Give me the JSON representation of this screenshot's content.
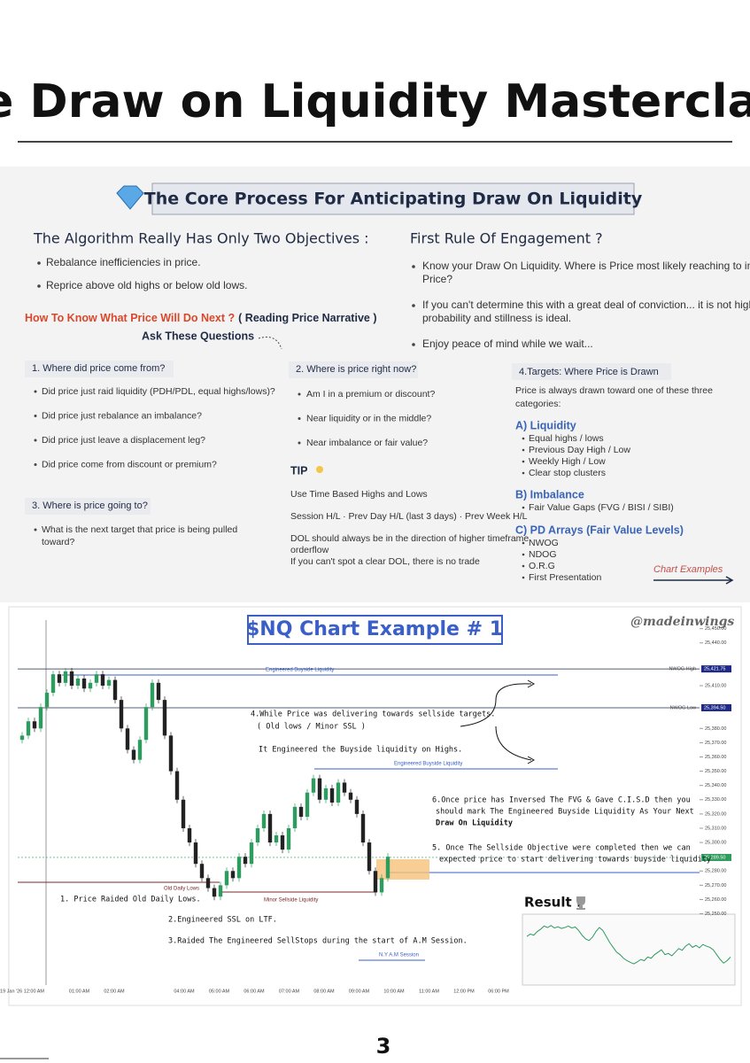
{
  "header": {
    "title": "The Draw on Liquidity Masterclass."
  },
  "section": {
    "heading": "The Core Process For Anticipating Draw On Liquidity"
  },
  "objectives": {
    "title": "The Algorithm Really Has Only Two Objectives :",
    "items": [
      "Rebalance inefficiencies in price.",
      "Reprice above old highs or below old lows."
    ]
  },
  "first_rule": {
    "title": "First Rule Of Engagement ?",
    "items": [
      [
        "Know your Draw On Liquidity. Where is Price most likely reaching to in",
        "Price?"
      ],
      [
        "If you can't determine this with a great deal of conviction... it is not high",
        "probability and stillness is ideal."
      ],
      [
        "Enjoy peace of mind while we wait..."
      ]
    ]
  },
  "narrative": {
    "question": "How To Know What Price Will Do Next ?",
    "subtitle": "( Reading Price Narrative )",
    "ask": "Ask These Questions"
  },
  "q1": {
    "title": "1. Where did price come from?",
    "items": [
      "Did price just raid liquidity (PDH/PDL, equal highs/lows)?",
      "Did price just rebalance an imbalance?",
      "Did price just leave a displacement leg?",
      "Did price come from discount or premium?"
    ]
  },
  "q2": {
    "title": "2. Where is price right now?",
    "items": [
      "Am I in a premium or discount?",
      "Near liquidity or in the middle?",
      "Near imbalance or fair value?"
    ]
  },
  "tip": {
    "title": "TIP",
    "items": [
      [
        "Use Time Based Highs and Lows"
      ],
      [
        "Session H/L · Prev Day H/L (last 3 days) · Prev Week H/L"
      ],
      [
        "DOL should always be in the direction of higher timeframe",
        "orderflow"
      ],
      [
        "If you can't spot a clear DOL, there is no trade"
      ]
    ]
  },
  "q3": {
    "title": "3. Where is price going to?",
    "items": [
      [
        "What is the next target that price is being pulled",
        "toward?"
      ]
    ]
  },
  "targets": {
    "title": "4.Targets: Where Price is Drawn",
    "intro": [
      "Price is always drawn toward one of these three",
      "categories:"
    ],
    "groups": [
      {
        "title": "A) Liquidity",
        "items": [
          "Equal highs / lows",
          "Previous Day High / Low",
          "Weekly High / Low",
          "Clear stop clusters"
        ]
      },
      {
        "title": "B) Imbalance",
        "items": [
          "Fair Value Gaps (FVG / BISI / SIBI)"
        ]
      },
      {
        "title": "C) PD Arrays (Fair Value Levels)",
        "items": [
          "NWOG",
          "NDOG",
          "O.R.G",
          "First Presentation"
        ]
      }
    ],
    "link": "Chart Examples"
  },
  "chart": {
    "title": "$NQ Chart Example # 1",
    "handle": "@madeinwings",
    "ylim": [
      25200,
      25456
    ],
    "yticks": [
      {
        "value": 25250,
        "label": "25,250.00"
      },
      {
        "value": 25260,
        "label": "25,260.00"
      },
      {
        "value": 25270,
        "label": "25,270.00"
      },
      {
        "value": 25280,
        "label": "25,280.00"
      },
      {
        "value": 25300,
        "label": "25,300.00"
      },
      {
        "value": 25310,
        "label": "25,310.00"
      },
      {
        "value": 25320,
        "label": "25,320.00"
      },
      {
        "value": 25330,
        "label": "25,330.00"
      },
      {
        "value": 25340,
        "label": "25,340.00"
      },
      {
        "value": 25350,
        "label": "25,350.00"
      },
      {
        "value": 25360,
        "label": "25,360.00"
      },
      {
        "value": 25370,
        "label": "25,370.00"
      },
      {
        "value": 25380,
        "label": "25,380.00"
      },
      {
        "value": 25410,
        "label": "25,410.00"
      },
      {
        "value": 25440,
        "label": "25,440.00"
      },
      {
        "value": 25450,
        "label": "25,450.00"
      }
    ],
    "levels": [
      {
        "name": "NWOG High",
        "value": 25421.75,
        "label": "25,421.75"
      },
      {
        "name": "NWOG Low",
        "value": 25394.5,
        "label": "25,394.50"
      }
    ],
    "last": {
      "value": 25289.5,
      "label": "25,289.50"
    },
    "times": [
      "Jan 19 Jan '26 12:00 AM",
      "01:00 AM",
      "02:00 AM",
      null,
      "04:00 AM",
      "05:00 AM",
      "06:00 AM",
      "07:00 AM",
      "08:00 AM",
      "09:00 AM",
      "10:00 AM",
      "11:00 AM",
      "12:00 PM",
      "06:00 PM"
    ],
    "closes": [
      25375,
      25385,
      25380,
      25395,
      25405,
      25418,
      25412,
      25420,
      25410,
      25415,
      25408,
      25412,
      25418,
      25410,
      25414,
      25400,
      25380,
      25365,
      25358,
      25372,
      25395,
      25412,
      25400,
      25375,
      25350,
      25330,
      25310,
      25300,
      25285,
      25275,
      25268,
      25262,
      25270,
      25280,
      25275,
      25290,
      25285,
      25300,
      25310,
      25320,
      25300,
      25305,
      25295,
      25310,
      25325,
      25318,
      25335,
      25345,
      25330,
      25338,
      25328,
      25342,
      25335,
      25330,
      25320,
      25300,
      25280,
      25265,
      25275,
      25290
    ],
    "annotations": [
      "Engineered Buyside Liquidity",
      "4.While Price was delivering towards sellside targets.",
      "( Old lows /  Minor SSL )",
      "It Engineered the Buyside liquidity on Highs.",
      "Engineered Buyside Liquidity",
      "6.Once price has Inversed The FVG & Gave C.I.S.D then you",
      "should mark The Engineered Buyside Liquidity As Your Next",
      "Draw On Liquidity",
      "5. Once The Sellside Objective were completed then  we can",
      "expected price to start delivering towards   buyside liquidity",
      "Old Daily Lows",
      "Minor Sellside Liquidity",
      "1.  Price Raided Old Daily Lows.",
      "2.Engineered SSL on LTF.",
      "3.Raided The Engineered SellStops during the start of A.M Session.",
      "N.Y A.M Session"
    ],
    "result": "Result :"
  },
  "footer": {
    "page": "3"
  }
}
